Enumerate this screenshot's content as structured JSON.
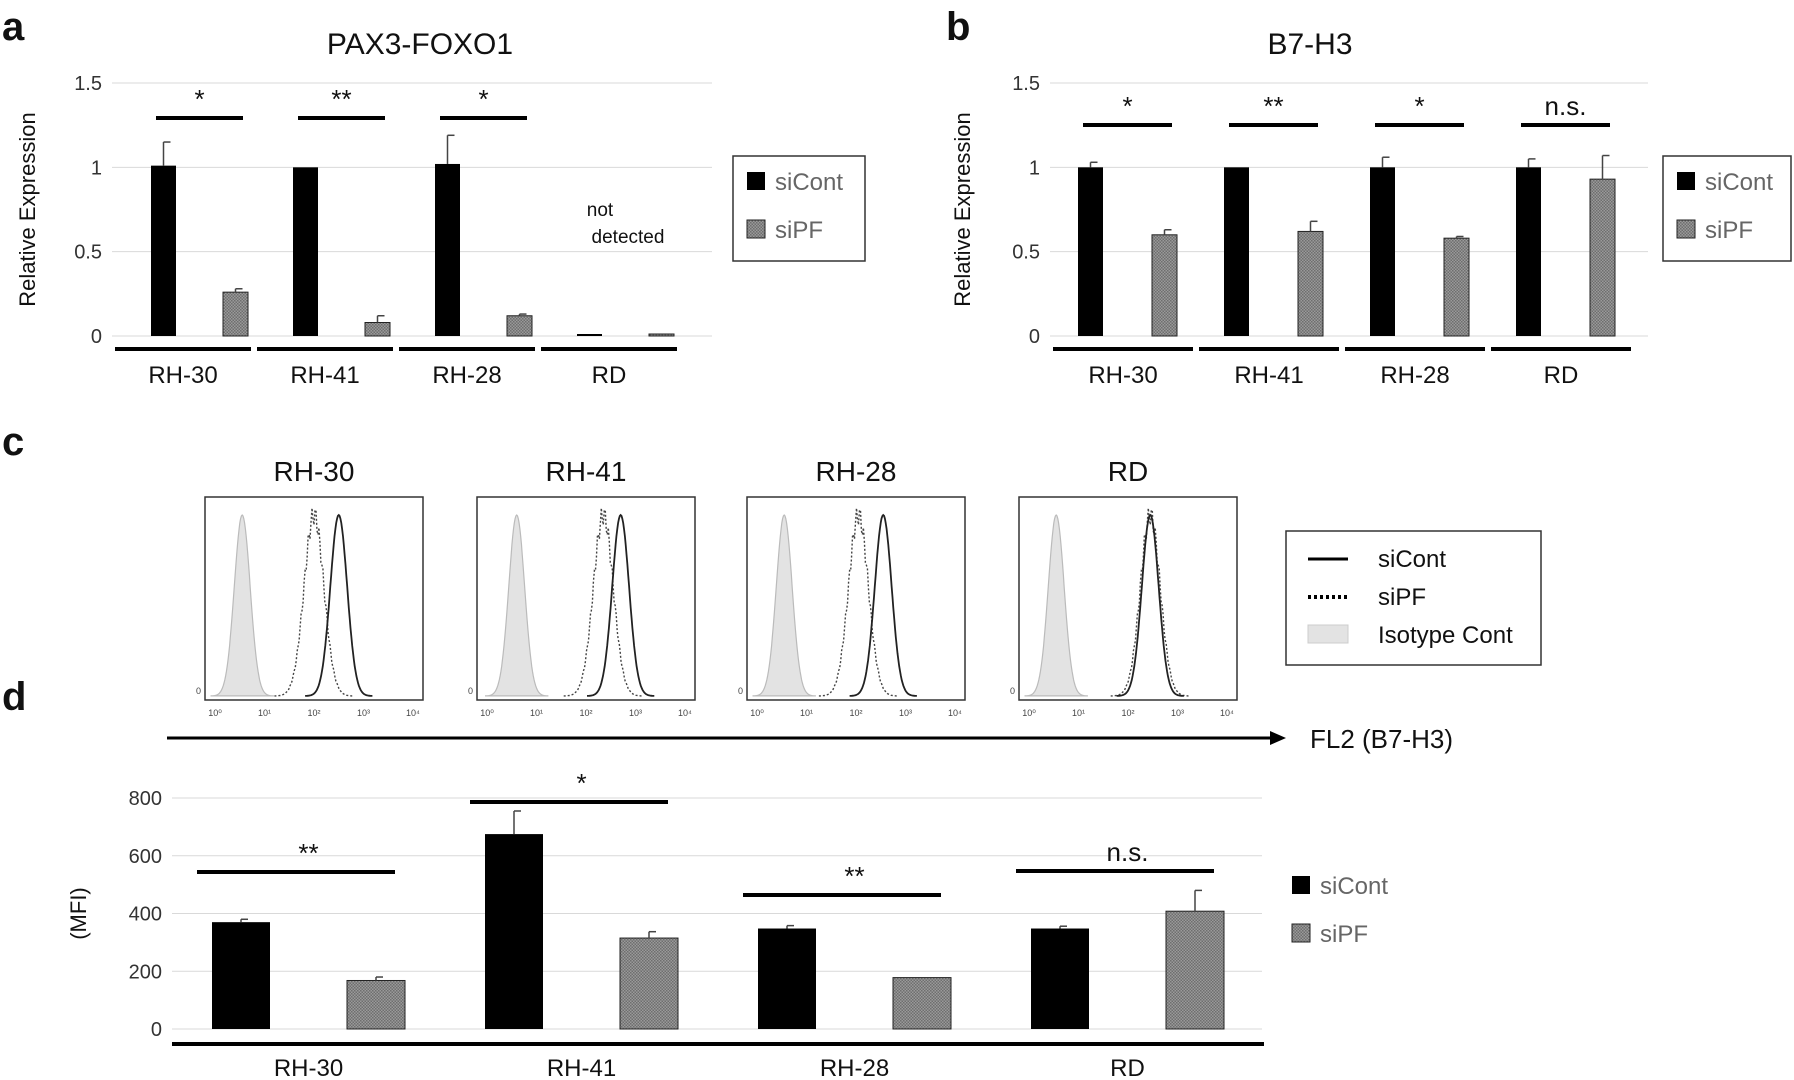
{
  "panel_labels": [
    "a",
    "b",
    "c",
    "d"
  ],
  "chart_data": [
    {
      "panel": "a",
      "type": "bar",
      "title": "PAX3-FOXO1",
      "ylabel": "Relative Expression",
      "ylim": [
        0,
        1.5
      ],
      "yticks": [
        0,
        0.5,
        1,
        1.5
      ],
      "ytick_labels": [
        "0",
        "0.5",
        "1",
        "1.5"
      ],
      "categories": [
        "RH-30",
        "RH-41",
        "RH-28",
        "RD"
      ],
      "series": [
        {
          "name": "siCont",
          "values": [
            1.01,
            1.0,
            1.02,
            0.0
          ],
          "errors": [
            0.14,
            0.0,
            0.17,
            0.0
          ]
        },
        {
          "name": "siPF",
          "values": [
            0.26,
            0.08,
            0.12,
            0.0
          ],
          "errors": [
            0.02,
            0.04,
            0.01,
            0.0
          ]
        }
      ],
      "significance": [
        "*",
        "**",
        "*"
      ],
      "annotation": [
        "not",
        "detected"
      ],
      "legend": [
        "siCont",
        "siPF"
      ],
      "grid": true
    },
    {
      "panel": "b",
      "type": "bar",
      "title": "B7-H3",
      "ylabel": "Relative Expression",
      "ylim": [
        0,
        1.5
      ],
      "yticks": [
        0,
        0.5,
        1,
        1.5
      ],
      "ytick_labels": [
        "0",
        "0.5",
        "1",
        "1.5"
      ],
      "categories": [
        "RH-30",
        "RH-41",
        "RH-28",
        "RD"
      ],
      "series": [
        {
          "name": "siCont",
          "values": [
            1.0,
            1.0,
            1.0,
            1.0
          ],
          "errors": [
            0.03,
            0.0,
            0.06,
            0.05
          ]
        },
        {
          "name": "siPF",
          "values": [
            0.6,
            0.62,
            0.58,
            0.93
          ],
          "errors": [
            0.03,
            0.06,
            0.01,
            0.14
          ]
        }
      ],
      "significance": [
        "*",
        "**",
        "*",
        "n.s."
      ],
      "legend": [
        "siCont",
        "siPF"
      ],
      "grid": true
    },
    {
      "panel": "c",
      "type": "histogram",
      "panels": [
        "RH-30",
        "RH-41",
        "RH-28",
        "RD"
      ],
      "x_axis_scale": "log",
      "xtick_labels": [
        "10⁰",
        "10¹",
        "10²",
        "10³",
        "10⁴"
      ],
      "y_zero_label": "0",
      "xlabel": "FL2 (B7-H3)",
      "peaks_log10": {
        "RH-30": {
          "siCont": 2.5,
          "siPF": 2.0,
          "Isotype Cont": 0.55
        },
        "RH-41": {
          "siCont": 2.7,
          "siPF": 2.35,
          "Isotype Cont": 0.6
        },
        "RH-28": {
          "siCont": 2.55,
          "siPF": 2.05,
          "Isotype Cont": 0.55
        },
        "RD": {
          "siCont": 2.45,
          "siPF": 2.45,
          "Isotype Cont": 0.55
        }
      },
      "legend": [
        "siCont",
        "siPF",
        "Isotype Cont"
      ]
    },
    {
      "panel": "d",
      "type": "bar",
      "ylabel": "(MFI)",
      "ylim": [
        0,
        800
      ],
      "yticks": [
        0,
        200,
        400,
        600,
        800
      ],
      "ytick_labels": [
        "0",
        "200",
        "400",
        "600",
        "800"
      ],
      "categories": [
        "RH-30",
        "RH-41",
        "RH-28",
        "RD"
      ],
      "series": [
        {
          "name": "siCont",
          "values": [
            370,
            675,
            348,
            348
          ],
          "errors": [
            10,
            80,
            10,
            8
          ]
        },
        {
          "name": "siPF",
          "values": [
            168,
            315,
            178,
            408
          ],
          "errors": [
            12,
            22,
            0,
            72
          ]
        }
      ],
      "significance": [
        "**",
        "*",
        "**",
        "n.s."
      ],
      "legend": [
        "siCont",
        "siPF"
      ],
      "grid": true
    }
  ],
  "colors": {
    "siCont": "#000000",
    "siPF": "#8c8c8c",
    "isotype": "#e3e3e3",
    "grid": "#d9d9d9"
  }
}
